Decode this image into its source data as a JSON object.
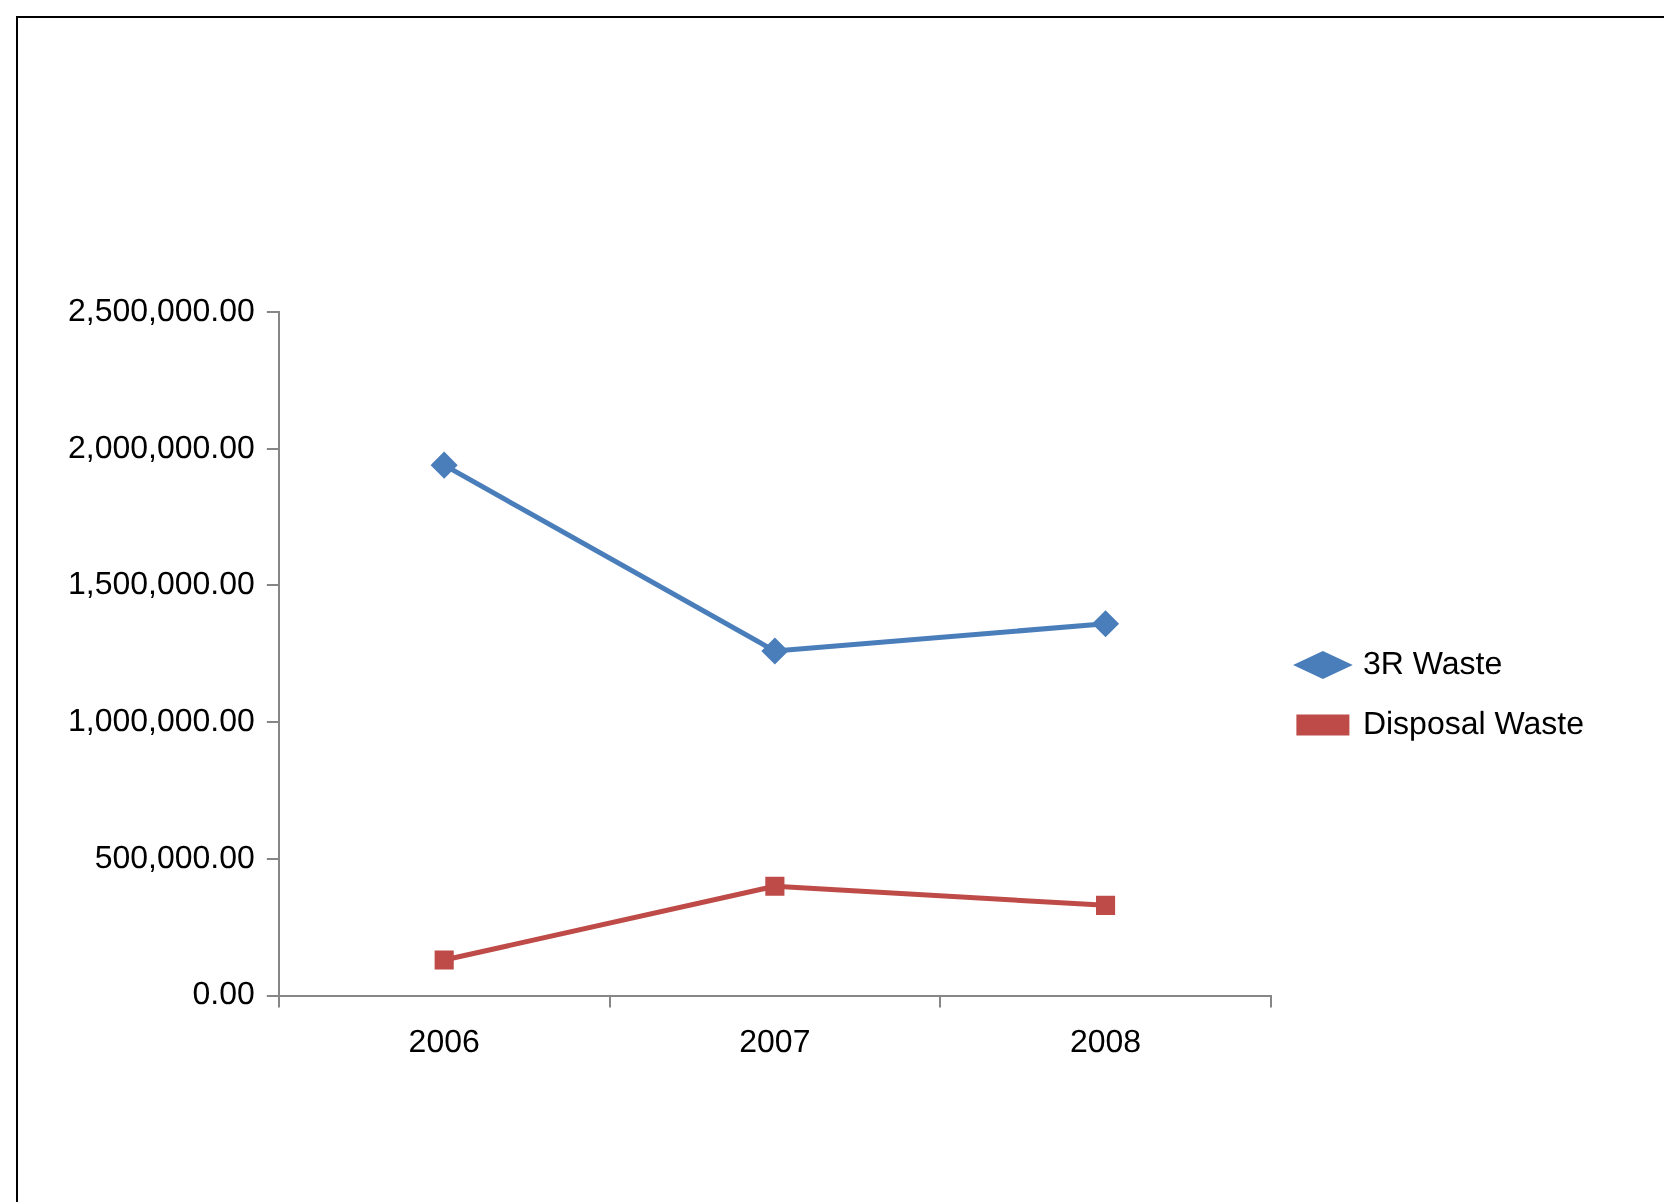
{
  "chart_data": {
    "type": "line",
    "categories": [
      "2006",
      "2007",
      "2008"
    ],
    "series": [
      {
        "name": "3R Waste",
        "color": "#4a7ebb",
        "marker": "diamond",
        "values": [
          1940000,
          1260000,
          1360000
        ]
      },
      {
        "name": "Disposal Waste",
        "color": "#be4b48",
        "marker": "square",
        "values": [
          130000,
          400000,
          330000
        ]
      }
    ],
    "ylim": [
      0,
      2500000
    ],
    "yticks": [
      {
        "value": 0,
        "label": "0.00"
      },
      {
        "value": 500000,
        "label": "500,000.00"
      },
      {
        "value": 1000000,
        "label": "1,000,000.00"
      },
      {
        "value": 1500000,
        "label": "1,500,000.00"
      },
      {
        "value": 2000000,
        "label": "2,000,000.00"
      },
      {
        "value": 2500000,
        "label": "2,500,000.00"
      }
    ],
    "grid": false,
    "legend": "right",
    "line_style": "solid"
  }
}
